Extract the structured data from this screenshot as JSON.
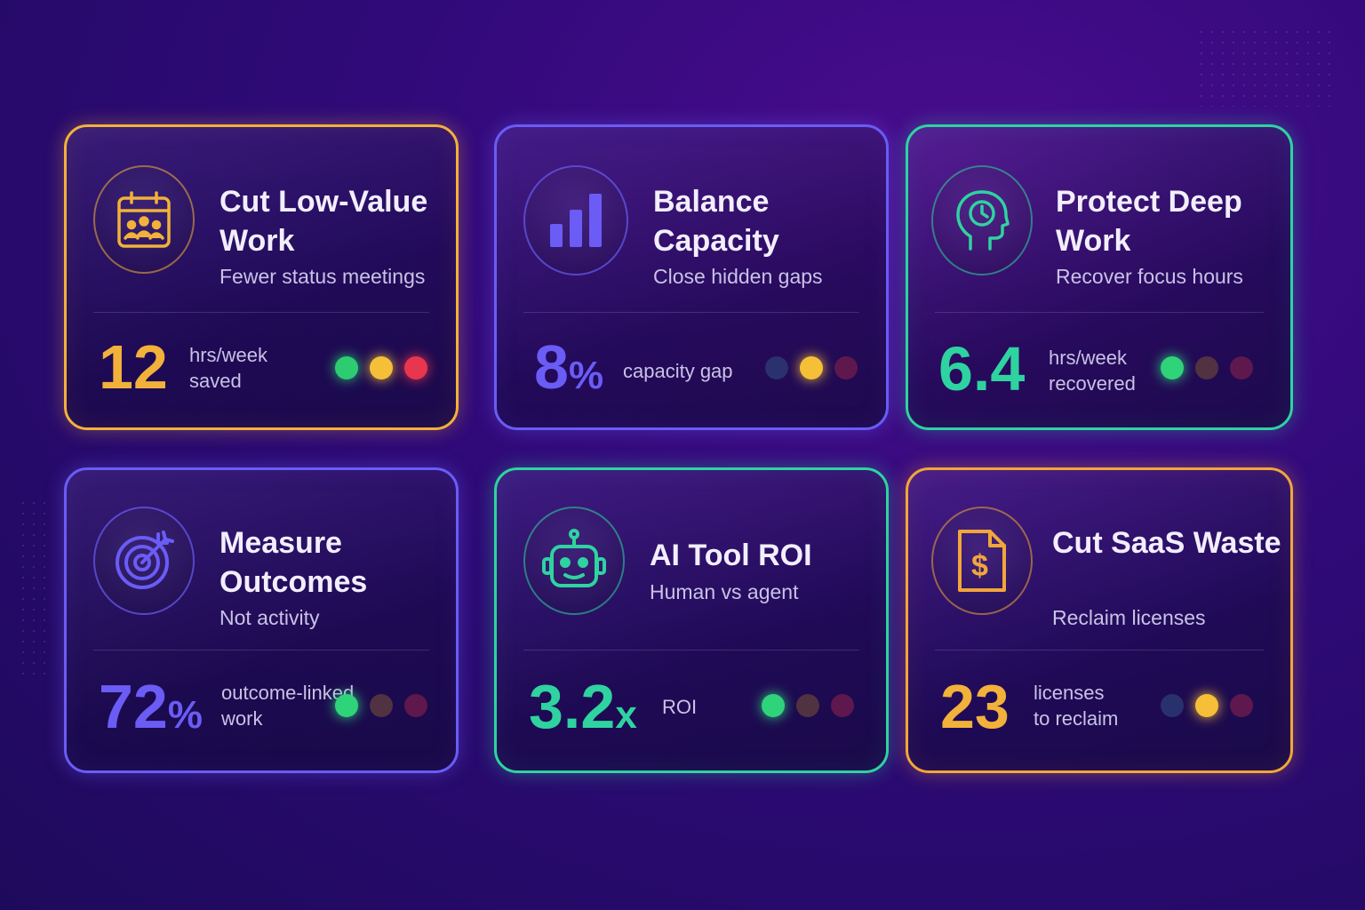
{
  "cards": [
    {
      "title": "Cut Low-Value Work",
      "subtitle": "Fewer status meetings",
      "metric_value": "12",
      "metric_unit": "",
      "metric_label": "hrs/week\nsaved",
      "icon": "calendar-team-icon",
      "accent": "#f2b13a",
      "dots": [
        {
          "color": "#2ecc71",
          "active": true
        },
        {
          "color": "#f5c038",
          "active": true
        },
        {
          "color": "#e8364f",
          "active": true
        }
      ]
    },
    {
      "title": "Balance Capacity",
      "subtitle": "Close hidden gaps",
      "metric_value": "8",
      "metric_unit": "%",
      "metric_label": "capacity gap",
      "icon": "bar-chart-icon",
      "accent": "#6a5cf5",
      "dots": [
        {
          "color": "#2c3872",
          "active": false
        },
        {
          "color": "#f5c038",
          "active": true
        },
        {
          "color": "#6a1b4d",
          "active": false
        }
      ]
    },
    {
      "title": "Protect Deep Work",
      "subtitle": "Recover focus hours",
      "metric_value": "6.4",
      "metric_unit": "",
      "metric_label": "hrs/week\nrecovered",
      "icon": "head-clock-icon",
      "accent": "#2fd3a0",
      "dots": [
        {
          "color": "#2fd37a",
          "active": true
        },
        {
          "color": "#5a3a3e",
          "active": false
        },
        {
          "color": "#6a1b4d",
          "active": false
        }
      ]
    },
    {
      "title": "Measure Outcomes",
      "subtitle": "Not activity",
      "metric_value": "72",
      "metric_unit": "%",
      "metric_label": "outcome-linked\nwork",
      "icon": "target-icon",
      "accent": "#6a5cf5",
      "dots": [
        {
          "color": "#2fd37a",
          "active": true
        },
        {
          "color": "#5a3a3e",
          "active": false
        },
        {
          "color": "#6a1b4d",
          "active": false
        }
      ]
    },
    {
      "title": "AI Tool ROI",
      "subtitle": "Human vs agent",
      "metric_value": "3.2",
      "metric_unit": "x",
      "metric_label": "ROI",
      "icon": "robot-icon",
      "accent": "#2fd3a0",
      "dots": [
        {
          "color": "#2fd37a",
          "active": true
        },
        {
          "color": "#5a3a3e",
          "active": false
        },
        {
          "color": "#6a1b4d",
          "active": false
        }
      ]
    },
    {
      "title": "Cut SaaS Waste",
      "subtitle": "Reclaim licenses",
      "metric_value": "23",
      "metric_unit": "",
      "metric_label": "licenses\nto reclaim",
      "icon": "invoice-dollar-icon",
      "accent": "#f2a63a",
      "dots": [
        {
          "color": "#2c3872",
          "active": false
        },
        {
          "color": "#f5c038",
          "active": true
        },
        {
          "color": "#6a1b4d",
          "active": false
        }
      ]
    }
  ]
}
